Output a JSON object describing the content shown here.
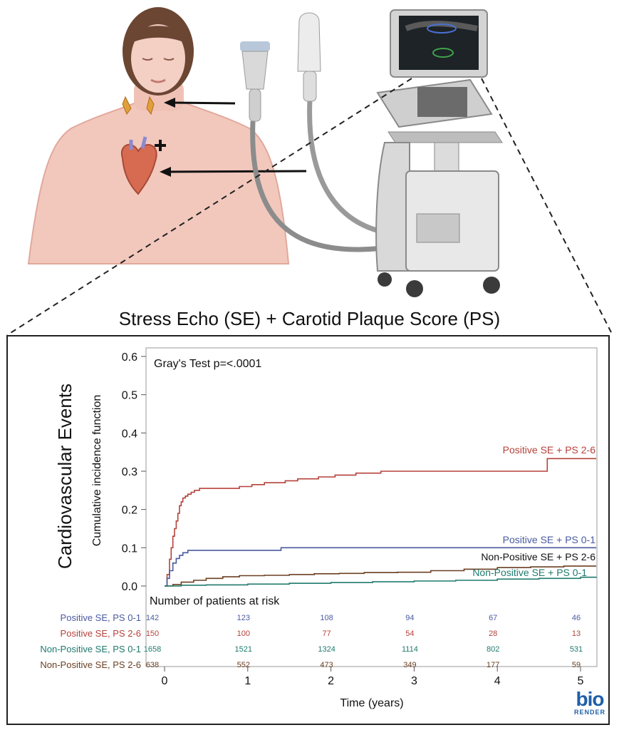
{
  "title": "Stress Echo (SE) + Carotid Plaque Score (PS)",
  "side_label": "Cardiovascular Events",
  "logo": {
    "line1": "bio",
    "line2": "RENDER"
  },
  "chart_data": {
    "type": "line",
    "annotation": "Gray's Test p=<.0001",
    "xlabel": "Time (years)",
    "ylabel": "Cumulative incidence function",
    "xlim": [
      0,
      5.2
    ],
    "ylim": [
      0,
      0.6
    ],
    "x_ticks": [
      0,
      1,
      2,
      3,
      4,
      5
    ],
    "x_tick_labels": [
      "0",
      "1",
      "2",
      "3",
      "4",
      "5"
    ],
    "y_ticks": [
      0,
      0.1,
      0.2,
      0.3,
      0.4,
      0.5,
      0.6
    ],
    "y_tick_labels": [
      "0.0",
      "0.1",
      "0.2",
      "0.3",
      "0.4",
      "0.5",
      "0.6"
    ],
    "grid": false,
    "series": [
      {
        "name": "Positive SE + PS 2-6",
        "color": "#b5413a",
        "x": [
          0,
          0.03,
          0.06,
          0.08,
          0.1,
          0.12,
          0.14,
          0.16,
          0.18,
          0.2,
          0.22,
          0.25,
          0.28,
          0.32,
          0.36,
          0.42,
          0.55,
          0.7,
          0.9,
          1.05,
          1.2,
          1.45,
          1.6,
          1.85,
          2.05,
          2.3,
          2.6,
          3.0,
          3.3,
          3.6,
          4.0,
          4.5,
          4.6,
          4.8,
          5.2
        ],
        "y": [
          0,
          0.03,
          0.07,
          0.1,
          0.13,
          0.15,
          0.17,
          0.19,
          0.21,
          0.22,
          0.23,
          0.235,
          0.24,
          0.245,
          0.25,
          0.255,
          0.255,
          0.255,
          0.26,
          0.265,
          0.27,
          0.275,
          0.28,
          0.285,
          0.29,
          0.295,
          0.3,
          0.3,
          0.3,
          0.3,
          0.3,
          0.3,
          0.333,
          0.333,
          0.333
        ]
      },
      {
        "name": "Positive SE + PS 0-1",
        "color": "#4a5aa0",
        "x": [
          0,
          0.03,
          0.06,
          0.1,
          0.14,
          0.18,
          0.22,
          0.28,
          0.4,
          0.8,
          1.3,
          1.4,
          2.0,
          3.0,
          4.0,
          5.2
        ],
        "y": [
          0,
          0.02,
          0.04,
          0.06,
          0.072,
          0.08,
          0.087,
          0.093,
          0.093,
          0.093,
          0.093,
          0.1,
          0.1,
          0.1,
          0.1,
          0.1
        ]
      },
      {
        "name": "Non-Positive SE + PS 2-6",
        "color": "#6b3f22",
        "x": [
          0,
          0.1,
          0.2,
          0.35,
          0.5,
          0.7,
          0.9,
          1.2,
          1.5,
          1.8,
          2.1,
          2.4,
          2.8,
          3.2,
          3.6,
          4.0,
          4.4,
          4.8,
          5.2
        ],
        "y": [
          0,
          0.004,
          0.01,
          0.015,
          0.02,
          0.024,
          0.027,
          0.028,
          0.03,
          0.032,
          0.033,
          0.035,
          0.036,
          0.04,
          0.044,
          0.048,
          0.05,
          0.052,
          0.052
        ]
      },
      {
        "name": "Non-Positive SE + PS 0-1",
        "color": "#1f7a6e",
        "x": [
          0,
          0.2,
          0.5,
          1.0,
          1.5,
          2.0,
          2.5,
          3.0,
          3.5,
          4.0,
          4.5,
          5.0,
          5.2
        ],
        "y": [
          0,
          0.002,
          0.003,
          0.005,
          0.007,
          0.009,
          0.011,
          0.013,
          0.015,
          0.018,
          0.02,
          0.023,
          0.024
        ]
      }
    ],
    "risk_table": {
      "header": "Number of patients at risk",
      "rows": [
        {
          "label": "Positive SE, PS 0-1",
          "color": "#4a5aa0",
          "values": [
            "142",
            "123",
            "108",
            "94",
            "67",
            "46"
          ]
        },
        {
          "label": "Positive SE, PS 2-6",
          "color": "#b5413a",
          "values": [
            "150",
            "100",
            "77",
            "54",
            "28",
            "13"
          ]
        },
        {
          "label": "Non-Positive SE, PS 0-1",
          "color": "#1f7a6e",
          "values": [
            "1658",
            "1521",
            "1324",
            "1114",
            "802",
            "531"
          ]
        },
        {
          "label": "Non-Positive SE, PS 2-6",
          "color": "#6b3f22",
          "values": [
            "638",
            "552",
            "473",
            "349",
            "177",
            "59"
          ]
        }
      ]
    }
  }
}
